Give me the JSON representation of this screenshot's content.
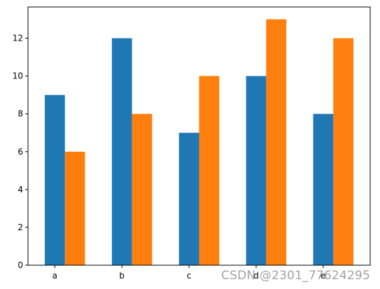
{
  "chart_data": {
    "type": "bar",
    "categories": [
      "a",
      "b",
      "c",
      "d",
      "e"
    ],
    "series": [
      {
        "values": [
          9,
          12,
          7,
          10,
          8
        ],
        "color": "#1f77b4"
      },
      {
        "values": [
          6,
          8,
          10,
          13,
          12
        ],
        "color": "#ff7f0e"
      }
    ],
    "title": "",
    "xlabel": "",
    "ylabel": "",
    "ylim": [
      0,
      13.65
    ],
    "yticks": [
      0,
      2,
      4,
      6,
      8,
      10,
      12
    ],
    "grid": false,
    "legend": "none"
  },
  "watermark": "CSDN @2301_77624295"
}
